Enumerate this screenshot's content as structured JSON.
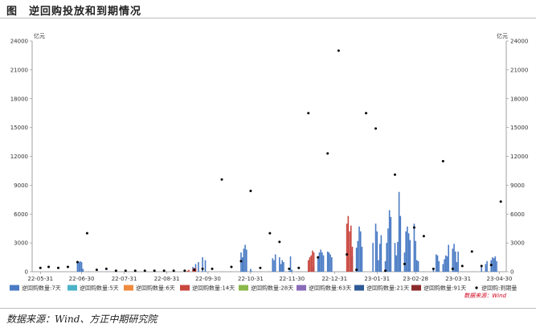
{
  "figure": {
    "label": "图",
    "title": "逆回购投放和到期情况",
    "source": "数据来源：Wind、方正中期研究院"
  },
  "chart_data": {
    "type": "bar",
    "unit_left": "亿元",
    "unit_right": "亿元",
    "ylim": [
      0,
      24000
    ],
    "yticks": [
      0,
      3000,
      6000,
      9000,
      12000,
      15000,
      18000,
      21000,
      24000
    ],
    "xlim": [
      "2022-05-25",
      "2023-05-05"
    ],
    "xtick_labels": [
      "22-05-31",
      "22-06-30",
      "22-07-31",
      "22-08-31",
      "22-09-30",
      "22-10-31",
      "22-11-30",
      "22-12-31",
      "23-01-31",
      "23-02-28",
      "23-03-31",
      "23-04-30"
    ],
    "xtick_dates": [
      "2022-05-31",
      "2022-06-30",
      "2022-07-31",
      "2022-08-31",
      "2022-09-30",
      "2022-10-31",
      "2022-11-30",
      "2022-12-31",
      "2023-01-31",
      "2023-02-28",
      "2023-03-31",
      "2023-04-30"
    ],
    "source_note": "数据来源：Wind",
    "legend_position": "bottom",
    "series": [
      {
        "name": "逆回购数量:7天",
        "color": "#4a7bc4",
        "style": "bar",
        "x": [
          "2022-06-27",
          "2022-06-28",
          "2022-06-29",
          "2022-06-30",
          "2022-07-01",
          "2022-07-05",
          "2022-07-12",
          "2022-07-19",
          "2022-07-26",
          "2022-08-02",
          "2022-08-09",
          "2022-08-16",
          "2022-08-23",
          "2022-08-30",
          "2022-09-06",
          "2022-09-13",
          "2022-09-19",
          "2022-09-21",
          "2022-09-23",
          "2022-09-26",
          "2022-09-28",
          "2022-10-10",
          "2022-10-17",
          "2022-10-24",
          "2022-10-25",
          "2022-10-26",
          "2022-10-27",
          "2022-10-28",
          "2022-10-31",
          "2022-11-01",
          "2022-11-07",
          "2022-11-14",
          "2022-11-16",
          "2022-11-17",
          "2022-11-18",
          "2022-11-21",
          "2022-11-22",
          "2022-11-23",
          "2022-11-24",
          "2022-11-28",
          "2022-11-29",
          "2022-11-30",
          "2022-12-05",
          "2022-12-12",
          "2022-12-15",
          "2022-12-16",
          "2022-12-19",
          "2022-12-20",
          "2022-12-21",
          "2022-12-22",
          "2022-12-23",
          "2022-12-26",
          "2022-12-27",
          "2022-12-28",
          "2022-12-29",
          "2023-01-03",
          "2023-01-09",
          "2023-01-10",
          "2023-01-12",
          "2023-01-13",
          "2023-01-16",
          "2023-01-17",
          "2023-01-18",
          "2023-01-19",
          "2023-01-20",
          "2023-01-28",
          "2023-01-30",
          "2023-01-31",
          "2023-02-01",
          "2023-02-02",
          "2023-02-03",
          "2023-02-06",
          "2023-02-07",
          "2023-02-08",
          "2023-02-09",
          "2023-02-10",
          "2023-02-13",
          "2023-02-14",
          "2023-02-15",
          "2023-02-16",
          "2023-02-17",
          "2023-02-20",
          "2023-02-21",
          "2023-02-22",
          "2023-02-23",
          "2023-02-24",
          "2023-02-27",
          "2023-02-28",
          "2023-03-01",
          "2023-03-02",
          "2023-03-06",
          "2023-03-13",
          "2023-03-15",
          "2023-03-16",
          "2023-03-17",
          "2023-03-20",
          "2023-03-21",
          "2023-03-22",
          "2023-03-23",
          "2023-03-24",
          "2023-03-27",
          "2023-03-28",
          "2023-03-29",
          "2023-03-30",
          "2023-03-31",
          "2023-04-03",
          "2023-04-10",
          "2023-04-17",
          "2023-04-20",
          "2023-04-21",
          "2023-04-24",
          "2023-04-25",
          "2023-04-26",
          "2023-04-27",
          "2023-04-28"
        ],
        "values": [
          1000,
          1000,
          1100,
          1000,
          300,
          30,
          30,
          30,
          30,
          20,
          20,
          20,
          20,
          20,
          20,
          20,
          500,
          800,
          1000,
          1500,
          1200,
          20,
          20,
          2000,
          1500,
          2400,
          2800,
          2300,
          300,
          50,
          20,
          20,
          1400,
          1200,
          1800,
          1500,
          800,
          1200,
          1000,
          100,
          1600,
          200,
          20,
          20,
          400,
          600,
          1400,
          2000,
          2300,
          2000,
          1700,
          2100,
          2000,
          1800,
          1500,
          20,
          20,
          40,
          2200,
          1600,
          2500,
          3200,
          4700,
          4200,
          2600,
          3000,
          5000,
          4200,
          1200,
          2900,
          3800,
          1100,
          3000,
          4500,
          6400,
          5700,
          3000,
          1700,
          3100,
          8300,
          5800,
          2000,
          4200,
          4700,
          4000,
          3300,
          5000,
          3200,
          1200,
          1100,
          20,
          400,
          1800,
          1700,
          1100,
          800,
          1300,
          1700,
          1600,
          2800,
          2400,
          2900,
          2100,
          1000,
          2100,
          20,
          20,
          500,
          800,
          1100,
          1200,
          1500,
          1400,
          1600,
          1100
        ]
      },
      {
        "name": "逆回购数量:5天",
        "color": "#4bb3c9",
        "style": "bar",
        "x": [],
        "values": []
      },
      {
        "name": "逆回购数量:6天",
        "color": "#f08a3e",
        "style": "bar",
        "x": [],
        "values": []
      },
      {
        "name": "逆回购数量:14天",
        "color": "#c9473f",
        "style": "bar",
        "x": [
          "2022-09-15",
          "2022-09-16",
          "2022-09-19",
          "2022-09-20",
          "2022-09-21",
          "2022-12-12",
          "2022-12-13",
          "2022-12-14",
          "2022-12-15",
          "2022-12-16",
          "2023-01-09",
          "2023-01-10",
          "2023-01-11",
          "2023-01-12",
          "2023-01-13"
        ],
        "values": [
          100,
          200,
          300,
          400,
          350,
          1200,
          1500,
          1700,
          2200,
          2000,
          5000,
          5800,
          4200,
          4800,
          2600
        ]
      },
      {
        "name": "逆回购数量:28天",
        "color": "#8ab84a",
        "style": "bar",
        "x": [],
        "values": []
      },
      {
        "name": "逆回购数量:63天",
        "color": "#8a6bb8",
        "style": "bar",
        "x": [],
        "values": []
      },
      {
        "name": "逆回购数量:21天",
        "color": "#2e5a96",
        "style": "bar",
        "x": [],
        "values": []
      },
      {
        "name": "逆回购数量:91天",
        "color": "#8b2a2a",
        "style": "bar",
        "x": [],
        "values": []
      },
      {
        "name": "逆回购:到期量",
        "color": "#000000",
        "style": "dot",
        "x": [
          "2022-05-31",
          "2022-06-06",
          "2022-06-13",
          "2022-06-20",
          "2022-06-27",
          "2022-07-04",
          "2022-07-11",
          "2022-07-18",
          "2022-07-25",
          "2022-08-01",
          "2022-08-08",
          "2022-08-15",
          "2022-08-22",
          "2022-08-29",
          "2022-09-05",
          "2022-09-13",
          "2022-09-20",
          "2022-09-26",
          "2022-10-03",
          "2022-10-10",
          "2022-10-17",
          "2022-10-24",
          "2022-10-31",
          "2022-11-07",
          "2022-11-14",
          "2022-11-21",
          "2022-11-28",
          "2022-12-05",
          "2022-12-12",
          "2022-12-19",
          "2022-12-26",
          "2023-01-03",
          "2023-01-09",
          "2023-01-16",
          "2023-01-23",
          "2023-01-30",
          "2023-02-06",
          "2023-02-13",
          "2023-02-20",
          "2023-02-27",
          "2023-03-06",
          "2023-03-13",
          "2023-03-20",
          "2023-03-27",
          "2023-04-03",
          "2023-04-10",
          "2023-04-17",
          "2023-04-24",
          "2023-05-01"
        ],
        "values": [
          400,
          500,
          400,
          500,
          1000,
          4000,
          200,
          300,
          100,
          100,
          100,
          100,
          100,
          100,
          100,
          100,
          200,
          300,
          300,
          9600,
          500,
          1100,
          8400,
          400,
          4000,
          3100,
          300,
          400,
          16500,
          1500,
          12300,
          23000,
          1800,
          200,
          16500,
          14900,
          100,
          10100,
          800,
          4600,
          3700,
          300,
          11500,
          300,
          600,
          2100,
          600,
          700,
          7300
        ]
      }
    ]
  }
}
